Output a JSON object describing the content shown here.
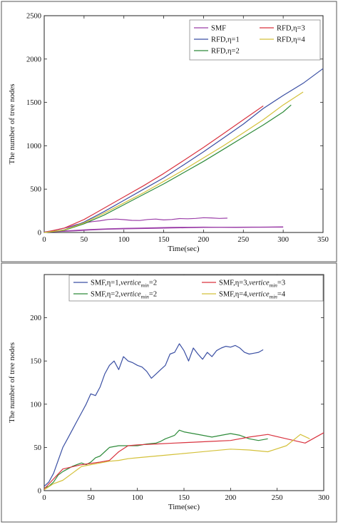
{
  "chart_data": [
    {
      "type": "line",
      "title": "",
      "xlabel": "Time(sec)",
      "ylabel": "The number of tree nodes",
      "xlim": [
        0,
        350
      ],
      "ylim": [
        0,
        2500
      ],
      "x_ticks": [
        0,
        50,
        100,
        150,
        200,
        250,
        300,
        350
      ],
      "y_ticks": [
        0,
        500,
        1000,
        1500,
        2000,
        2500
      ],
      "grid": false,
      "legend_position": "top-right",
      "legend_rows": [
        [
          "SMF",
          "RFD,η=3"
        ],
        [
          "RFD,η=1",
          "RFD,η=4"
        ],
        [
          "RFD,η=2"
        ]
      ],
      "series": [
        {
          "name": "SMF",
          "color": "#9b3ea8",
          "x": [
            0,
            10,
            20,
            30,
            40,
            50,
            60,
            70,
            80,
            90,
            100,
            110,
            120,
            130,
            140,
            150,
            160,
            170,
            180,
            190,
            200,
            210,
            220,
            230
          ],
          "y": [
            5,
            20,
            40,
            60,
            90,
            110,
            125,
            135,
            150,
            155,
            148,
            140,
            138,
            150,
            155,
            145,
            150,
            160,
            158,
            162,
            170,
            168,
            162,
            165
          ]
        },
        {
          "name": "SMF",
          "color": "#9b3ea8",
          "x": [
            0,
            20,
            40,
            60,
            80,
            100,
            120,
            140,
            160,
            180,
            200,
            220,
            240,
            260,
            280,
            300
          ],
          "y": [
            5,
            15,
            25,
            35,
            42,
            48,
            50,
            55,
            58,
            60,
            62,
            60,
            58,
            60,
            62,
            65
          ]
        },
        {
          "name": "SMF",
          "color": "#9b3ea8",
          "x": [
            0,
            20,
            40,
            60,
            80,
            100,
            120,
            140,
            160,
            180,
            200,
            220,
            240,
            260,
            280,
            300
          ],
          "y": [
            5,
            12,
            20,
            30,
            38,
            42,
            45,
            48,
            52,
            55,
            58,
            60,
            61,
            62,
            62,
            62
          ]
        },
        {
          "name": "RFD,η=1",
          "color": "#3a4fa3",
          "x": [
            0,
            25,
            50,
            75,
            100,
            125,
            150,
            175,
            200,
            225,
            250,
            275,
            300,
            325,
            350
          ],
          "y": [
            0,
            30,
            120,
            240,
            370,
            500,
            630,
            780,
            930,
            1090,
            1250,
            1430,
            1580,
            1720,
            1890
          ]
        },
        {
          "name": "RFD,η=2",
          "color": "#2e8b3a",
          "x": [
            0,
            25,
            50,
            75,
            100,
            125,
            150,
            175,
            200,
            225,
            250,
            275,
            300,
            310
          ],
          "y": [
            0,
            25,
            100,
            200,
            320,
            440,
            560,
            690,
            820,
            960,
            1100,
            1240,
            1390,
            1470
          ]
        },
        {
          "name": "RFD,η=3",
          "color": "#d9333f",
          "x": [
            0,
            25,
            50,
            75,
            100,
            125,
            150,
            175,
            200,
            225,
            250,
            275
          ],
          "y": [
            0,
            50,
            150,
            280,
            410,
            540,
            680,
            830,
            980,
            1140,
            1300,
            1460
          ]
        },
        {
          "name": "RFD,η=4",
          "color": "#d4c13a",
          "x": [
            0,
            25,
            50,
            75,
            100,
            125,
            150,
            175,
            200,
            225,
            250,
            275,
            300,
            325
          ],
          "y": [
            0,
            28,
            110,
            220,
            340,
            460,
            590,
            720,
            860,
            1000,
            1150,
            1300,
            1470,
            1620
          ]
        }
      ]
    },
    {
      "type": "line",
      "title": "",
      "xlabel": "Time(sec)",
      "ylabel": "The number of tree nodes",
      "xlim": [
        0,
        300
      ],
      "ylim": [
        0,
        250
      ],
      "x_ticks": [
        0,
        50,
        100,
        150,
        200,
        250,
        300
      ],
      "y_ticks": [
        0,
        50,
        100,
        150,
        200
      ],
      "grid": false,
      "legend_position": "top",
      "legend_columns": [
        [
          "SMF,η=1,vertice_min=2",
          "SMF,η=2,vertice_min=2"
        ],
        [
          "SMF,η=3,vertice_min=3",
          "SMF,η=4,vertice_min=4"
        ]
      ],
      "series": [
        {
          "name": "SMF,η=1,vertice_min=2",
          "color": "#3a4fa3",
          "x": [
            0,
            5,
            10,
            15,
            20,
            25,
            30,
            35,
            40,
            45,
            50,
            55,
            60,
            65,
            70,
            75,
            80,
            85,
            90,
            95,
            100,
            105,
            110,
            115,
            120,
            125,
            130,
            135,
            140,
            145,
            150,
            155,
            160,
            165,
            170,
            175,
            180,
            185,
            190,
            195,
            200,
            205,
            210,
            215,
            220,
            225,
            230,
            235
          ],
          "y": [
            5,
            10,
            20,
            35,
            50,
            60,
            70,
            80,
            90,
            100,
            112,
            110,
            120,
            135,
            145,
            150,
            140,
            155,
            150,
            148,
            145,
            143,
            138,
            130,
            135,
            140,
            145,
            158,
            160,
            170,
            162,
            150,
            165,
            158,
            152,
            160,
            155,
            162,
            165,
            167,
            166,
            168,
            165,
            160,
            158,
            159,
            160,
            163
          ]
        },
        {
          "name": "SMF,η=2,vertice_min=2",
          "color": "#2e8b3a",
          "x": [
            0,
            5,
            10,
            15,
            20,
            25,
            30,
            35,
            40,
            45,
            50,
            55,
            60,
            65,
            70,
            80,
            90,
            100,
            110,
            120,
            125,
            130,
            135,
            140,
            145,
            150,
            160,
            170,
            180,
            190,
            200,
            210,
            220,
            230,
            240
          ],
          "y": [
            3,
            5,
            10,
            18,
            22,
            25,
            28,
            30,
            32,
            30,
            33,
            38,
            40,
            45,
            50,
            52,
            52,
            52,
            54,
            55,
            57,
            60,
            62,
            64,
            70,
            68,
            66,
            64,
            62,
            64,
            66,
            64,
            60,
            58,
            60
          ]
        },
        {
          "name": "SMF,η=3,vertice_min=3",
          "color": "#d9333f",
          "x": [
            0,
            20,
            40,
            60,
            70,
            80,
            90,
            100,
            120,
            140,
            160,
            180,
            200,
            220,
            240,
            260,
            280,
            300
          ],
          "y": [
            2,
            25,
            30,
            33,
            35,
            45,
            52,
            53,
            54,
            55,
            56,
            57,
            58,
            62,
            65,
            60,
            55,
            67
          ]
        },
        {
          "name": "SMF,η=4,vertice_min=4",
          "color": "#d4c13a",
          "x": [
            0,
            10,
            20,
            30,
            40,
            50,
            60,
            70,
            80,
            90,
            100,
            120,
            140,
            160,
            180,
            200,
            220,
            240,
            260,
            275,
            285
          ],
          "y": [
            1,
            8,
            12,
            20,
            28,
            30,
            32,
            34,
            35,
            37,
            38,
            40,
            42,
            44,
            46,
            48,
            47,
            45,
            52,
            65,
            60
          ]
        }
      ]
    }
  ]
}
